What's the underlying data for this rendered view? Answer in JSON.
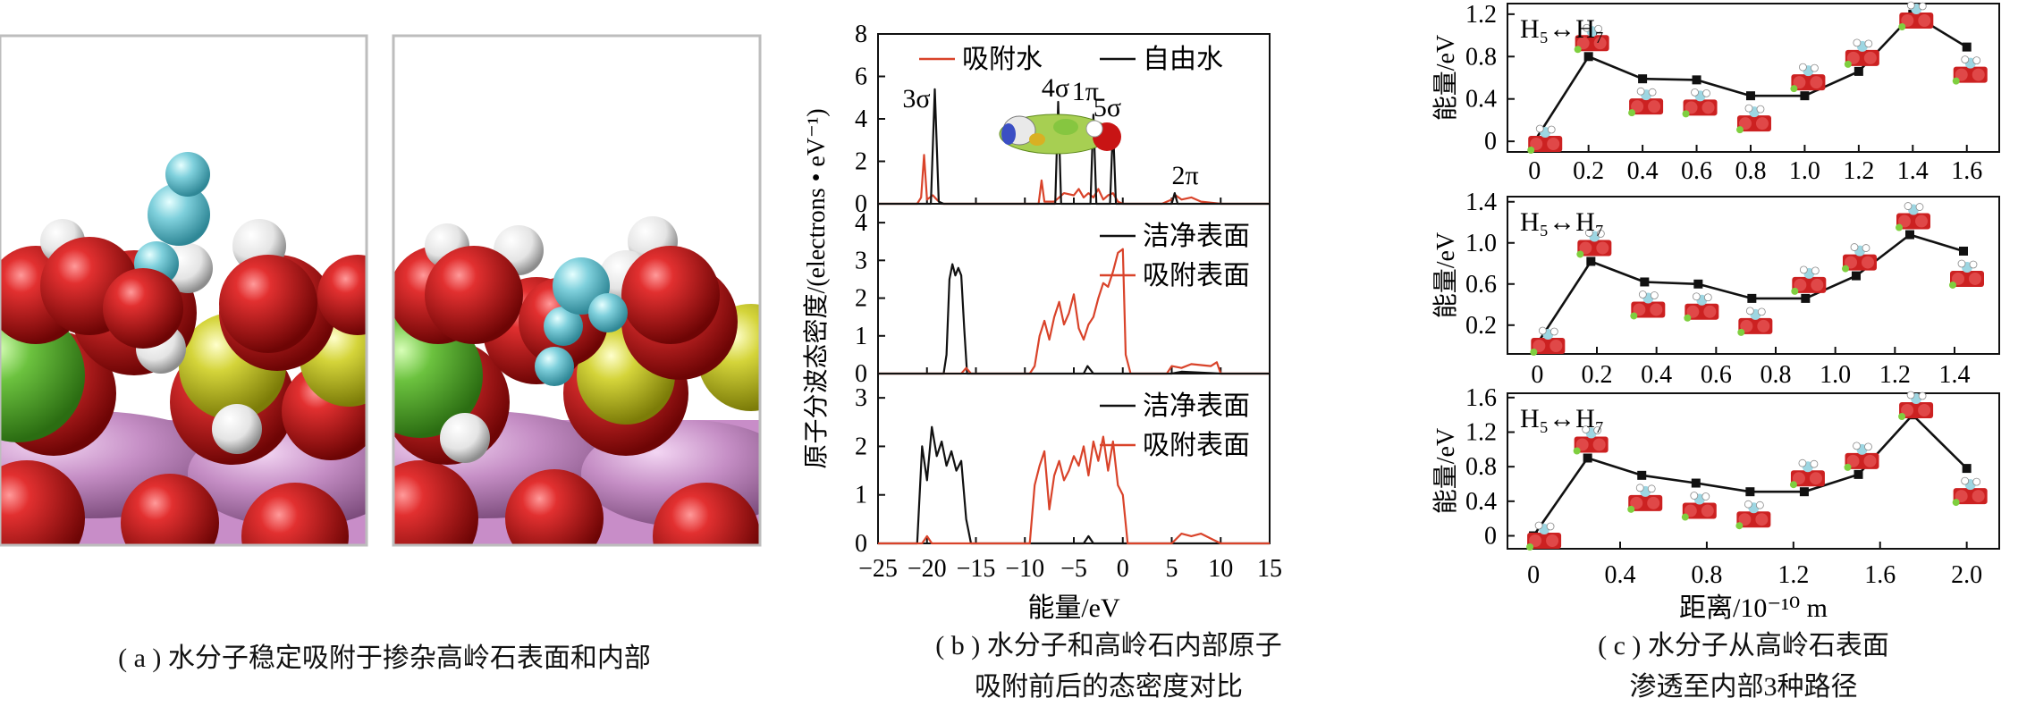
{
  "panel_a": {
    "caption": "( a ) 水分子稳定吸附于掺杂高岭石表面和内部"
  },
  "panel_b": {
    "ylabel": "原子分波态密度/(electrons • eV⁻¹)",
    "xlabel": "能量/eV",
    "caption_line1": "( b ) 水分子和高岭石内部原子",
    "caption_line2": "吸附前后的态密度对比",
    "xticks": [
      "−25",
      "−20",
      "−15",
      "−10",
      "−5",
      "0",
      "5",
      "10",
      "15"
    ],
    "colors": {
      "red": "#d9432a",
      "black": "#111111"
    }
  },
  "panel_c": {
    "ylabel": "能量/eV",
    "xlabel": "距离/10⁻¹⁰ m",
    "caption_line1": "( c ) 水分子从高岭石表面",
    "caption_line2": "渗透至内部3种路径",
    "path_label": "H₅↔H₇"
  },
  "chart_data": [
    {
      "type": "line",
      "panel": "b-top",
      "xlim": [
        -25,
        15
      ],
      "ylim": [
        0,
        8
      ],
      "yticks": [
        "0",
        "2",
        "4",
        "6",
        "8"
      ],
      "legend": [
        "吸附水",
        "自由水"
      ],
      "annotations": [
        "3σ",
        "4σ",
        "1π",
        "5σ",
        "2π"
      ],
      "series": [
        {
          "name": "吸附水",
          "color": "#d9432a",
          "x": [
            -25,
            -21,
            -20.6,
            -20.3,
            -20,
            -19.4,
            -19,
            -18.5,
            -10,
            -8.6,
            -8.3,
            -8,
            -7,
            -6.5,
            -6,
            -5,
            -4.5,
            -4,
            -3.5,
            -3,
            -2.5,
            -2,
            -1.5,
            -1,
            -0.5,
            0,
            4,
            5,
            5.4,
            6,
            7,
            8,
            10,
            15
          ],
          "y": [
            0,
            0,
            0.3,
            2.3,
            0.2,
            0.4,
            0.2,
            0,
            0,
            0,
            1.1,
            0.1,
            0.1,
            0.3,
            0.5,
            0.4,
            0.7,
            0.3,
            0.5,
            0.3,
            0.7,
            0.2,
            0.4,
            0.5,
            0.1,
            0,
            0,
            0.2,
            0.4,
            0.2,
            0.3,
            0.1,
            0,
            0
          ]
        },
        {
          "name": "自由水",
          "color": "#111111",
          "x": [
            -25,
            -19.6,
            -19.2,
            -18.8,
            -18.3,
            -8,
            -6.9,
            -6.6,
            -6.3,
            -6,
            -3.3,
            -3,
            -2.7,
            -2.4,
            -1.3,
            -1,
            -0.7,
            -0.4,
            5,
            5.3,
            5.6,
            6.2,
            15
          ],
          "y": [
            0,
            0,
            5.4,
            0.1,
            0,
            0,
            0,
            4.8,
            0,
            0,
            0,
            4.2,
            0,
            0,
            0,
            3.7,
            0,
            0,
            0,
            0.5,
            0,
            0,
            0
          ]
        }
      ]
    },
    {
      "type": "line",
      "panel": "b-middle",
      "xlim": [
        -25,
        15
      ],
      "ylim": [
        0,
        4.5
      ],
      "yticks": [
        "0",
        "1",
        "2",
        "3",
        "4"
      ],
      "legend": [
        "洁净表面",
        "吸附表面"
      ],
      "series": [
        {
          "name": "洁净表面",
          "color": "#111111",
          "x": [
            -25,
            -18.3,
            -18,
            -17.7,
            -17.4,
            -17.1,
            -16.8,
            -16.5,
            -16.2,
            -15.9,
            -8,
            -4,
            -3.6,
            -3,
            5,
            6,
            10,
            15
          ],
          "y": [
            0,
            0,
            0.5,
            2.5,
            2.9,
            2.6,
            2.8,
            2.6,
            1.2,
            0,
            0,
            0,
            0.2,
            0,
            0,
            0.05,
            0,
            0
          ]
        },
        {
          "name": "吸附表面",
          "color": "#d9432a",
          "x": [
            -25,
            -16.5,
            -16,
            -15.5,
            -9.5,
            -9,
            -8.5,
            -8,
            -7.5,
            -7,
            -6.5,
            -6,
            -5.5,
            -5,
            -4.5,
            -4,
            -3.5,
            -3,
            -2.5,
            -2,
            -1.5,
            -1,
            -0.5,
            0,
            0.3,
            0.8,
            4.5,
            5,
            6,
            7,
            9,
            9.6,
            10,
            15
          ],
          "y": [
            0,
            0,
            0.15,
            0,
            0,
            0.2,
            1,
            1.4,
            0.9,
            1.5,
            1.9,
            1.3,
            1.6,
            2.1,
            1.2,
            0.9,
            1.3,
            1.5,
            2,
            2.4,
            2.3,
            2.7,
            3.2,
            3.3,
            0.5,
            0,
            0,
            0.2,
            0.15,
            0.25,
            0.2,
            0.3,
            0,
            0
          ]
        }
      ]
    },
    {
      "type": "line",
      "panel": "b-bottom",
      "xlim": [
        -25,
        15
      ],
      "ylim": [
        0,
        3.5
      ],
      "yticks": [
        "0",
        "1",
        "2",
        "3"
      ],
      "legend": [
        "洁净表面",
        "吸附表面"
      ],
      "series": [
        {
          "name": "洁净表面",
          "color": "#111111",
          "x": [
            -25,
            -21,
            -20.5,
            -20,
            -19.5,
            -19,
            -18.5,
            -18,
            -17.5,
            -17,
            -16.5,
            -16,
            -15.5,
            -8,
            -4,
            -3.5,
            -3,
            5,
            15
          ],
          "y": [
            0,
            0,
            2.0,
            1.3,
            2.4,
            1.8,
            2.1,
            1.6,
            1.9,
            1.5,
            1.7,
            0.5,
            0,
            0,
            0,
            0.15,
            0,
            0,
            0
          ]
        },
        {
          "name": "吸附表面",
          "color": "#d9432a",
          "x": [
            -25,
            -20.5,
            -20,
            -19.5,
            -9.5,
            -9,
            -8.5,
            -8,
            -7.5,
            -7,
            -6.5,
            -6,
            -5.5,
            -5,
            -4.5,
            -4,
            -3.5,
            -3,
            -2.5,
            -2,
            -1.5,
            -1,
            -0.5,
            0,
            0.5,
            5,
            6,
            7,
            8,
            9,
            10,
            15
          ],
          "y": [
            0,
            0,
            0.15,
            0,
            0,
            1.2,
            1.6,
            1.9,
            0.7,
            1.4,
            1.7,
            1.3,
            1.5,
            1.8,
            1.6,
            2.0,
            1.4,
            2.1,
            1.7,
            2.2,
            1.5,
            2.1,
            1.2,
            1.0,
            0,
            0,
            0.2,
            0.15,
            0.2,
            0.1,
            0,
            0
          ]
        }
      ]
    },
    {
      "type": "line",
      "panel": "c-top",
      "x": [
        0,
        0.2,
        0.4,
        0.6,
        0.8,
        1.0,
        1.2,
        1.4,
        1.6
      ],
      "series": [
        {
          "values": [
            0,
            0.8,
            0.59,
            0.58,
            0.43,
            0.43,
            0.66,
            1.2,
            0.89
          ]
        }
      ],
      "xlim": [
        -0.1,
        1.72
      ],
      "ylim": [
        -0.1,
        1.3
      ],
      "xticks": [
        "0",
        "0.2",
        "0.4",
        "0.6",
        "0.8",
        "1.0",
        "1.2",
        "1.4",
        "1.6"
      ],
      "yticks": [
        "0",
        "0.4",
        "0.8",
        "1.2"
      ]
    },
    {
      "type": "line",
      "panel": "c-middle",
      "x": [
        0,
        0.18,
        0.36,
        0.54,
        0.72,
        0.9,
        1.07,
        1.25,
        1.43
      ],
      "series": [
        {
          "values": [
            0.02,
            0.82,
            0.62,
            0.6,
            0.46,
            0.46,
            0.68,
            1.08,
            0.92
          ]
        }
      ],
      "xlim": [
        -0.1,
        1.55
      ],
      "ylim": [
        -0.08,
        1.45
      ],
      "xticks": [
        "0",
        "0.2",
        "0.4",
        "0.6",
        "0.8",
        "1.0",
        "1.2",
        "1.4"
      ],
      "yticks": [
        "0.2",
        "0.6",
        "1.0",
        "1.4"
      ]
    },
    {
      "type": "line",
      "panel": "c-bottom",
      "x": [
        0,
        0.25,
        0.5,
        0.75,
        1.0,
        1.25,
        1.5,
        1.75,
        2.0
      ],
      "series": [
        {
          "values": [
            0,
            0.9,
            0.7,
            0.61,
            0.51,
            0.51,
            0.71,
            1.4,
            0.78
          ]
        }
      ],
      "xlim": [
        -0.12,
        2.15
      ],
      "ylim": [
        -0.15,
        1.65
      ],
      "xticks": [
        "0",
        "0.4",
        "0.8",
        "1.2",
        "1.6",
        "2.0"
      ],
      "yticks": [
        "0",
        "0.4",
        "0.8",
        "1.2",
        "1.6"
      ],
      "xlabel": "距离/10⁻¹⁰ m"
    }
  ]
}
